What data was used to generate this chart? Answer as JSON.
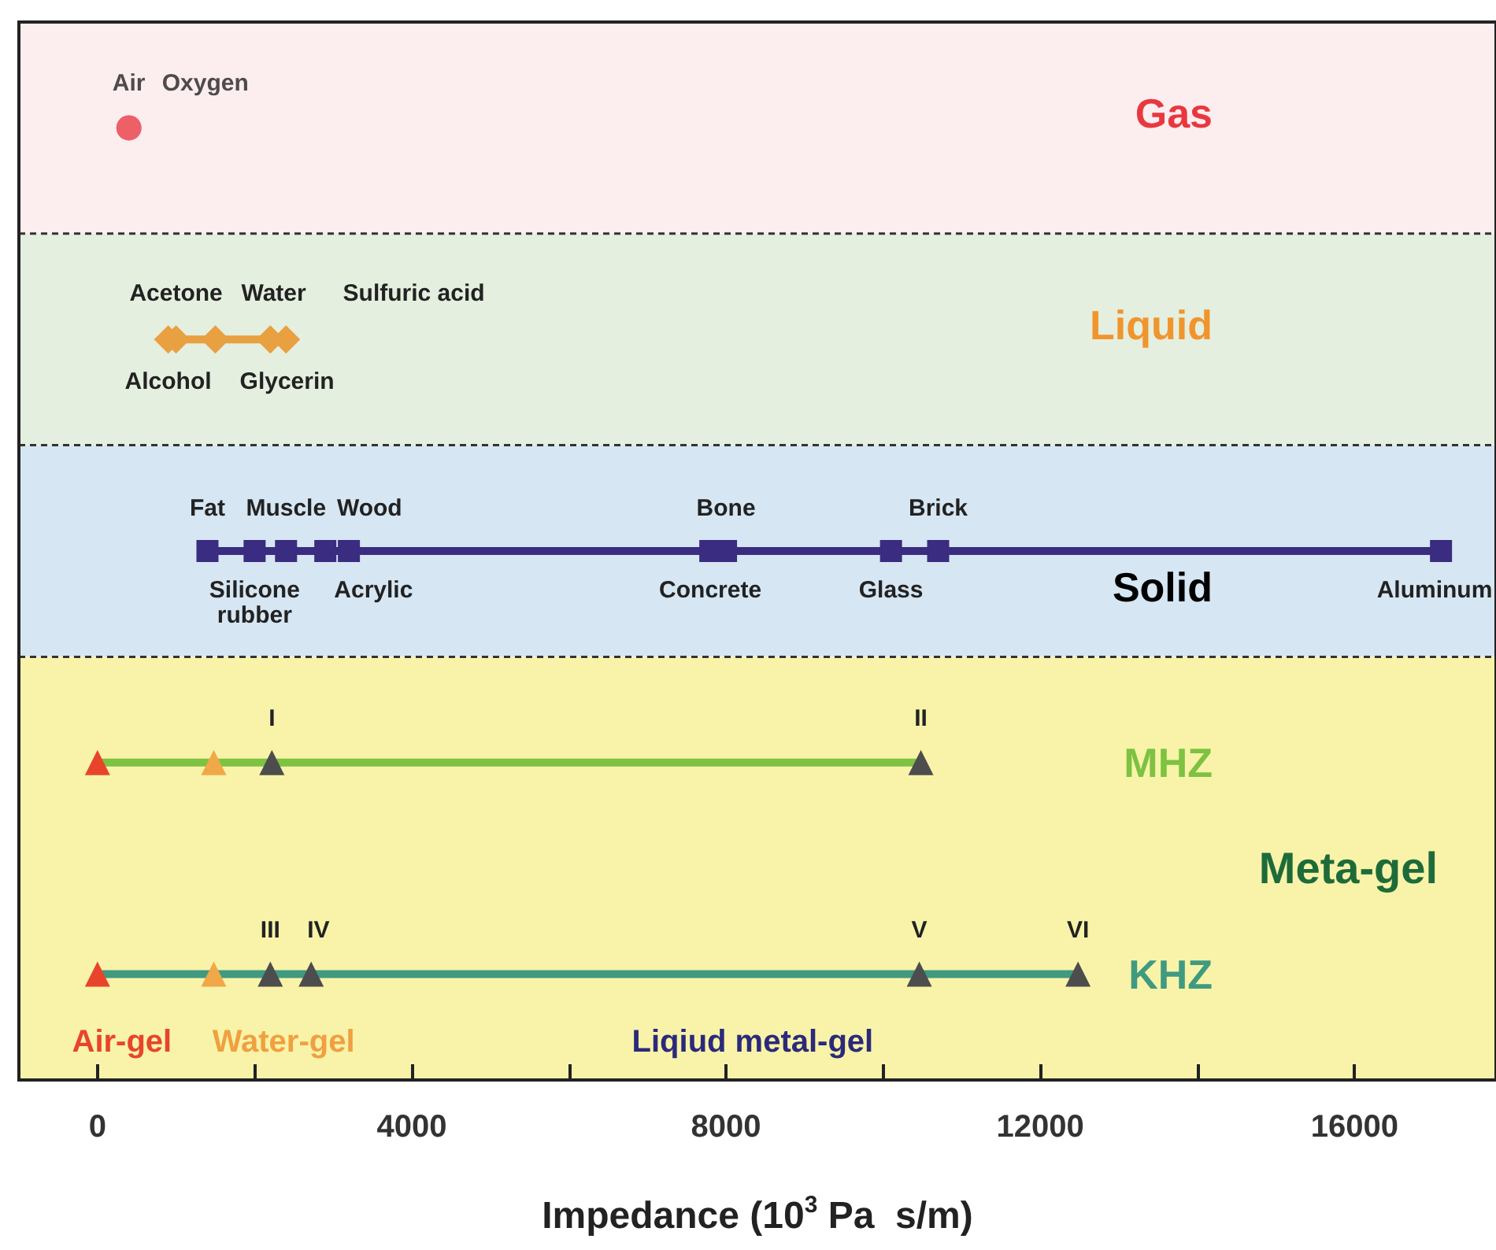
{
  "chart_data": {
    "type": "line",
    "orientation": "horizontal",
    "xlabel": "Impedance (10$^{3}$ Pa  s/m)",
    "categories": [
      "Gas",
      "Liquid",
      "Solid",
      "MHZ",
      "KHZ"
    ],
    "xlim": [
      -1000,
      17800
    ],
    "xticks": [
      0,
      {
        "value": 2000,
        "label": null
      },
      4000,
      {
        "value": 6000,
        "label": null
      },
      8000,
      {
        "value": 10000,
        "label": null
      },
      12000,
      {
        "value": 14000,
        "label": null
      },
      16000
    ],
    "series": [
      {
        "type": "scatter",
        "marker": "circle",
        "color": "#ec5a63",
        "x": [
          "Gas",
          "Gas"
        ],
        "values": [
          400,
          400
        ],
        "value_labels": [
          "Air",
          "Oxygen"
        ]
      },
      {
        "marker": "diamond",
        "color": "#e8a040",
        "x": [
          "Liquid",
          "Liquid",
          "Liquid",
          "Liquid",
          "Liquid"
        ],
        "values": [
          1000,
          900,
          1500,
          2200,
          2400
        ],
        "value_labels": [
          "Acetone",
          "Alcohol",
          "Water",
          "Glycerin",
          "Sulfuric acid"
        ]
      },
      {
        "marker": "square",
        "color": "#3a2c80",
        "x": [
          "Solid",
          "Solid",
          "Solid",
          "Solid",
          "Solid",
          "Solid",
          "Solid",
          "Solid",
          "Solid",
          "Solid"
        ],
        "values": [
          1400,
          2000,
          2400,
          3200,
          2900,
          7800,
          8000,
          10100,
          10700,
          17100
        ],
        "value_labels": [
          "Fat",
          "Silicone\nrubber",
          "Muscle",
          "Acrylic",
          "Wood",
          "Concrete",
          "Bone",
          "Glass",
          "Brick",
          "Aluminum"
        ]
      },
      {
        "marker": "triangle",
        "color": "#7dc241",
        "x": [
          "MHZ",
          "MHZ",
          "MHZ",
          "MHZ"
        ],
        "values": [
          0,
          1480,
          2220,
          10480
        ],
        "colors": [
          "#e8442c",
          "#f0a848",
          "#4d4d4d",
          "#4d4d4d"
        ],
        "value_labels": [
          null,
          null,
          "I",
          "II"
        ]
      },
      {
        "marker": "triangle",
        "color": "#3f9a80",
        "x": [
          "KHZ",
          "KHZ",
          "KHZ",
          "KHZ",
          "KHZ",
          "KHZ"
        ],
        "values": [
          0,
          1480,
          2200,
          2720,
          10460,
          12480
        ],
        "colors": [
          "#e8442c",
          "#f0a848",
          "#4d4d4d",
          "#4d4d4d",
          "#4d4d4d",
          "#4d4d4d"
        ],
        "value_labels": [
          null,
          null,
          "III",
          "IV",
          "V",
          "VI"
        ]
      }
    ],
    "bands": [
      {
        "axis": "y",
        "from": "Gas",
        "to": "Gas",
        "color": "#fcedef"
      },
      {
        "axis": "y",
        "from": "Liquid",
        "to": "Liquid",
        "color": "#e4efdf"
      },
      {
        "axis": "y",
        "from": "Solid",
        "to": "Solid",
        "color": "#d6e6f3"
      },
      {
        "axis": "y",
        "from": "MHZ",
        "to": "KHZ",
        "color": "#f8f3a9",
        "label": "Meta-gel"
      }
    ],
    "annotations": [
      "Air-gel",
      "Water-gel",
      "Liqiud metal-gel"
    ]
  }
}
